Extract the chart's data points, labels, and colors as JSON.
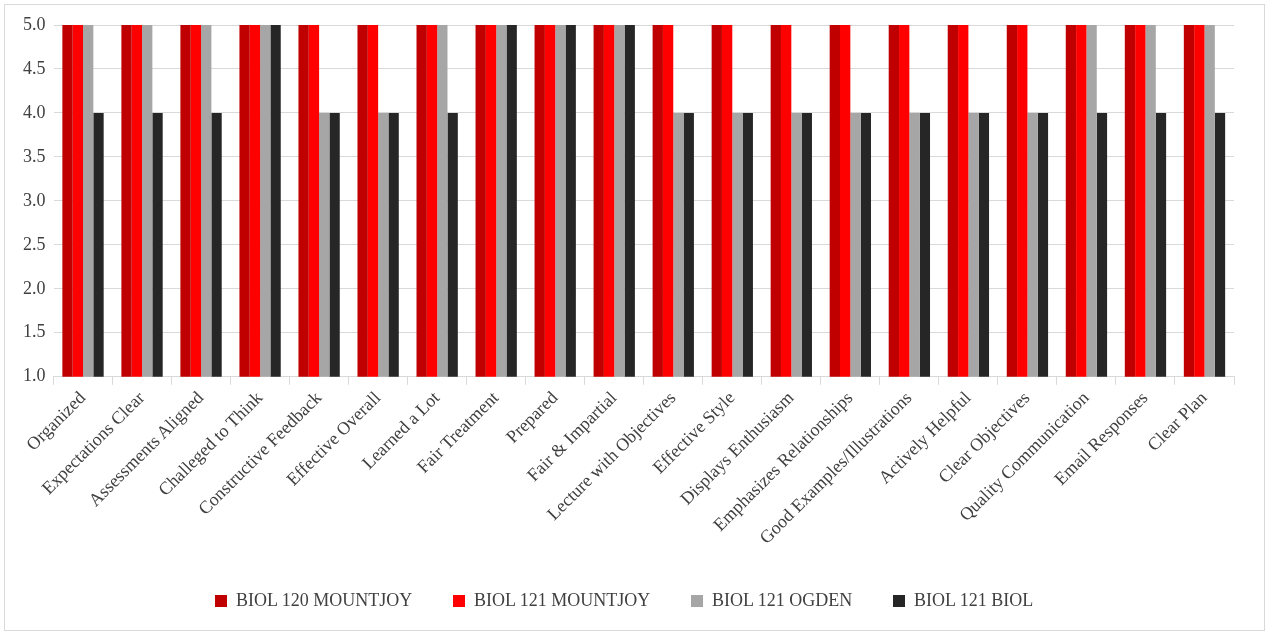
{
  "chart_data": {
    "type": "bar",
    "categories": [
      "Organized",
      "Expectations Clear",
      "Assessments Aligned",
      "Challeged to Think",
      "Constructive Feedback",
      "Effective Overall",
      "Learned a Lot",
      "Fair Treatment",
      "Prepared",
      "Fair & Impartial",
      "Lecture with Objectives",
      "Effective Style",
      "Displays Enthusiasm",
      "Emphasizes Relationships",
      "Good Examples/Illustrations",
      "Actively Helpful",
      "Clear Objectives",
      "Quality Communication",
      "Email Responses",
      "Clear Plan"
    ],
    "series": [
      {
        "name": "BIOL 120 MOUNTJOY",
        "color": "#c00000",
        "values": [
          5,
          5,
          5,
          5,
          5,
          5,
          5,
          5,
          5,
          5,
          5,
          5,
          5,
          5,
          5,
          5,
          5,
          5,
          5,
          5
        ]
      },
      {
        "name": "BIOL 121 MOUNTJOY",
        "color": "#ff0000",
        "values": [
          5,
          5,
          5,
          5,
          5,
          5,
          5,
          5,
          5,
          5,
          5,
          5,
          5,
          5,
          5,
          5,
          5,
          5,
          5,
          5
        ]
      },
      {
        "name": "BIOL 121 OGDEN",
        "color": "#a6a6a6",
        "values": [
          5,
          5,
          5,
          5,
          4,
          4,
          5,
          5,
          5,
          5,
          4,
          4,
          4,
          4,
          4,
          4,
          4,
          5,
          5,
          5
        ]
      },
      {
        "name": "BIOL 121 BIOL",
        "color": "#262626",
        "values": [
          4,
          4,
          4,
          5,
          4,
          4,
          4,
          5,
          5,
          5,
          4,
          4,
          4,
          4,
          4,
          4,
          4,
          4,
          4,
          4
        ]
      }
    ],
    "ylim": [
      1,
      5
    ],
    "yticks": [
      {
        "value": 1,
        "label": "1.0"
      },
      {
        "value": 1.5,
        "label": "1.5"
      },
      {
        "value": 2,
        "label": "2.0"
      },
      {
        "value": 2.5,
        "label": "2.5"
      },
      {
        "value": 3,
        "label": "3.0"
      },
      {
        "value": 3.5,
        "label": "3.5"
      },
      {
        "value": 4,
        "label": "4.0"
      },
      {
        "value": 4.5,
        "label": "4.5"
      },
      {
        "value": 5,
        "label": "5.0"
      }
    ],
    "grid": "y",
    "legend": "bottom"
  }
}
